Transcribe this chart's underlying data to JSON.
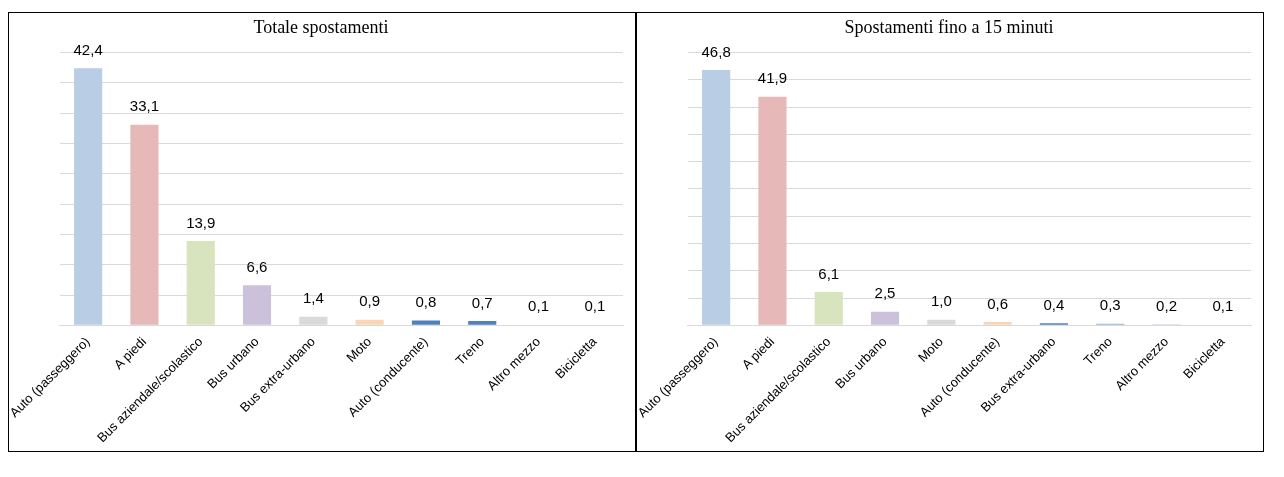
{
  "chart_data": [
    {
      "type": "bar",
      "title": "Totale spostamenti",
      "categories": [
        "Auto (passeggero)",
        "A piedi",
        "Bus aziendale/scolastico",
        "Bus urbano",
        "Bus extra-urbano",
        "Moto",
        "Auto (conducente)",
        "Treno",
        "Altro mezzo",
        "Bicicletta"
      ],
      "values": [
        42.4,
        33.1,
        13.9,
        6.6,
        1.4,
        0.9,
        0.8,
        0.7,
        0.1,
        0.1
      ],
      "value_labels": [
        "42,4",
        "33,1",
        "13,9",
        "6,6",
        "1,4",
        "0,9",
        "0,8",
        "0,7",
        "0,1",
        "0,1"
      ],
      "colors": [
        "#b9cde5",
        "#e6b9b8",
        "#d7e4bd",
        "#ccc1da",
        "#d9d9d9",
        "#fcd5b5",
        "#4f81bd",
        "#4f81bd",
        "#95b3d7",
        "#b9cde5"
      ],
      "ylim": [
        0,
        45
      ],
      "yticks": [
        {
          "value": 0,
          "label": null
        },
        {
          "value": 5,
          "label": null
        },
        {
          "value": 10,
          "label": null
        },
        {
          "value": 15,
          "label": null
        },
        {
          "value": 20,
          "label": null
        },
        {
          "value": 25,
          "label": null
        },
        {
          "value": 30,
          "label": null
        },
        {
          "value": 35,
          "label": null
        },
        {
          "value": 40,
          "label": null
        },
        {
          "value": 45,
          "label": null
        }
      ],
      "tick_labels": "x",
      "grid": "y",
      "legend": false
    },
    {
      "type": "bar",
      "title": "Spostamenti fino a 15 minuti",
      "categories": [
        "Auto (passeggero)",
        "A piedi",
        "Bus aziendale/scolastico",
        "Bus urbano",
        "Moto",
        "Auto (conducente)",
        "Bus extra-urbano",
        "Treno",
        "Altro mezzo",
        "Bicicletta"
      ],
      "values": [
        46.8,
        41.9,
        6.1,
        2.5,
        1.0,
        0.6,
        0.4,
        0.3,
        0.2,
        0.1
      ],
      "value_labels": [
        "46,8",
        "41,9",
        "6,1",
        "2,5",
        "1,0",
        "0,6",
        "0,4",
        "0,3",
        "0,2",
        "0,1"
      ],
      "colors": [
        "#b9cde5",
        "#e6b9b8",
        "#d7e4bd",
        "#ccc1da",
        "#d9d9d9",
        "#fcd5b5",
        "#4f81bd",
        "#95b3d7",
        "#b9cde5",
        "#e6b9b8"
      ],
      "ylim": [
        0,
        50
      ],
      "yticks": [
        {
          "value": 0,
          "label": null
        },
        {
          "value": 5,
          "label": null
        },
        {
          "value": 10,
          "label": null
        },
        {
          "value": 15,
          "label": null
        },
        {
          "value": 20,
          "label": null
        },
        {
          "value": 25,
          "label": null
        },
        {
          "value": 30,
          "label": null
        },
        {
          "value": 35,
          "label": null
        },
        {
          "value": 40,
          "label": null
        },
        {
          "value": 45,
          "label": null
        },
        {
          "value": 50,
          "label": null
        }
      ],
      "tick_labels": "x",
      "grid": "y",
      "legend": false
    }
  ]
}
